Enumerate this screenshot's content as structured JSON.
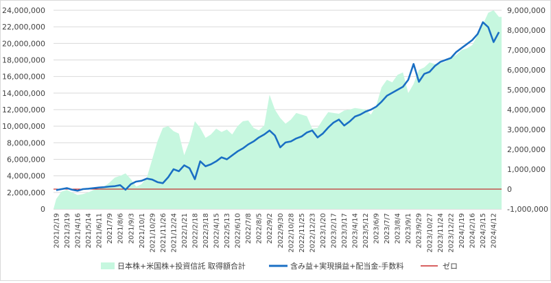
{
  "chart_data": {
    "type": "combo",
    "subtypes": [
      "area",
      "line",
      "line"
    ],
    "x": [
      "2021/2/19",
      "2021/3/5",
      "2021/3/19",
      "2021/4/2",
      "2021/4/16",
      "2021/4/30",
      "2021/5/14",
      "2021/5/28",
      "2021/6/11",
      "2021/6/25",
      "2021/7/9",
      "2021/7/23",
      "2021/8/6",
      "2021/8/20",
      "2021/9/3",
      "2021/9/17",
      "2021/10/1",
      "2021/10/15",
      "2021/10/29",
      "2021/11/12",
      "2021/11/26",
      "2021/12/10",
      "2021/12/24",
      "2022/1/7",
      "2022/1/21",
      "2022/2/4",
      "2022/2/18",
      "2022/3/4",
      "2022/3/18",
      "2022/4/1",
      "2022/4/15",
      "2022/4/29",
      "2022/5/13",
      "2022/5/27",
      "2022/6/10",
      "2022/6/24",
      "2022/7/8",
      "2022/7/22",
      "2022/8/5",
      "2022/8/19",
      "2022/9/2",
      "2022/9/16",
      "2022/9/30",
      "2022/10/14",
      "2022/10/28",
      "2022/11/11",
      "2022/11/25",
      "2022/12/9",
      "2022/12/23",
      "2023/1/6",
      "2023/1/20",
      "2023/2/3",
      "2023/2/17",
      "2023/3/3",
      "2023/3/17",
      "2023/3/31",
      "2023/4/14",
      "2023/4/28",
      "2023/5/12",
      "2023/5/26",
      "2023/6/9",
      "2023/6/23",
      "2023/7/7",
      "2023/7/21",
      "2023/8/4",
      "2023/8/18",
      "2023/9/1",
      "2023/9/15",
      "2023/9/29",
      "2023/10/13",
      "2023/10/27",
      "2023/11/10",
      "2023/11/24",
      "2023/12/8",
      "2023/12/22",
      "2024/1/5",
      "2024/1/19",
      "2024/2/2",
      "2024/2/16",
      "2024/3/1",
      "2024/3/15",
      "2024/3/29",
      "2024/4/12",
      "2024/4/26"
    ],
    "x_tick_labels": [
      "2021/2/19",
      "2021/3/19",
      "2021/4/16",
      "2021/5/14",
      "2021/6/11",
      "2021/7/9",
      "2021/8/6",
      "2021/9/3",
      "2021/10/1",
      "2021/10/29",
      "2021/11/26",
      "2021/12/24",
      "2022/1/21",
      "2022/2/18",
      "2022/3/18",
      "2022/4/15",
      "2022/5/13",
      "2022/6/10",
      "2022/7/8",
      "2022/8/5",
      "2022/9/2",
      "2022/9/30",
      "2022/10/28",
      "2022/11/25",
      "2022/12/23",
      "2023/1/20",
      "2023/2/17",
      "2023/3/17",
      "2023/4/14",
      "2023/5/12",
      "2023/6/9",
      "2023/7/7",
      "2023/8/4",
      "2023/9/1",
      "2023/9/29",
      "2023/10/27",
      "2023/11/24",
      "2023/12/22",
      "2024/1/19",
      "2024/2/16",
      "2024/3/15",
      "2024/4/12"
    ],
    "y_left": {
      "min": 0,
      "max": 24000000,
      "step": 2000000,
      "tick_labels": [
        "0",
        "2,000,000",
        "4,000,000",
        "6,000,000",
        "8,000,000",
        "10,000,000",
        "12,000,000",
        "14,000,000",
        "16,000,000",
        "18,000,000",
        "20,000,000",
        "22,000,000",
        "24,000,000"
      ]
    },
    "y_right": {
      "min": -1000000,
      "max": 9000000,
      "step": 1000000,
      "tick_labels": [
        "-1,000,000",
        "0",
        "1,000,000",
        "2,000,000",
        "3,000,000",
        "4,000,000",
        "5,000,000",
        "6,000,000",
        "7,000,000",
        "8,000,000",
        "9,000,000"
      ]
    },
    "series": [
      {
        "name": "日本株+米国株+投資信託 取得額合計",
        "type": "area",
        "axis": "left",
        "color": "#c6f7df",
        "values": [
          1200000,
          2100000,
          2300000,
          2000000,
          1700000,
          1800000,
          2000000,
          2300000,
          2400000,
          2700000,
          3200000,
          3800000,
          4000000,
          4300000,
          3600000,
          2700000,
          3000000,
          3800000,
          6000000,
          8200000,
          9800000,
          10000000,
          9400000,
          9100000,
          6500000,
          8200000,
          10600000,
          9800000,
          8600000,
          9000000,
          9700000,
          9300000,
          9600000,
          9000000,
          10000000,
          10600000,
          10700000,
          9800000,
          9500000,
          10100000,
          13800000,
          12000000,
          11000000,
          10300000,
          10800000,
          11600000,
          11400000,
          11200000,
          9700000,
          9800000,
          10800000,
          11700000,
          11600000,
          11500000,
          11900000,
          12000000,
          12200000,
          12100000,
          12000000,
          11400000,
          12500000,
          14700000,
          15600000,
          15300000,
          16200000,
          16500000,
          14000000,
          15100000,
          16800000,
          17100000,
          17700000,
          17500000,
          17600000,
          17800000,
          18300000,
          18600000,
          19200000,
          19400000,
          19800000,
          21000000,
          22300000,
          23700000,
          24000000,
          23200000
        ]
      },
      {
        "name": "含み益+実現損益+配当金-手数料",
        "type": "line",
        "axis": "right",
        "color": "#1a6fc4",
        "values": [
          -50000,
          0,
          50000,
          -30000,
          -80000,
          0,
          20000,
          50000,
          80000,
          100000,
          130000,
          150000,
          200000,
          -30000,
          250000,
          380000,
          420000,
          530000,
          480000,
          350000,
          300000,
          600000,
          1000000,
          900000,
          1200000,
          1050000,
          500000,
          1400000,
          1150000,
          1250000,
          1400000,
          1600000,
          1500000,
          1700000,
          1900000,
          2050000,
          2250000,
          2400000,
          2600000,
          2750000,
          2950000,
          2700000,
          2100000,
          2350000,
          2400000,
          2550000,
          2650000,
          2850000,
          2950000,
          2600000,
          2800000,
          3100000,
          3350000,
          3500000,
          3200000,
          3400000,
          3650000,
          3750000,
          3900000,
          4000000,
          4150000,
          4400000,
          4700000,
          4850000,
          5000000,
          5150000,
          5500000,
          6300000,
          5400000,
          5800000,
          5900000,
          6200000,
          6400000,
          6500000,
          6600000,
          6900000,
          7100000,
          7300000,
          7500000,
          7800000,
          8400000,
          8150000,
          7400000,
          7900000
        ]
      },
      {
        "name": "ゼロ",
        "type": "line",
        "axis": "right",
        "color": "#c00000",
        "values": "constant 0"
      }
    ],
    "legend_position": "bottom",
    "grid": "horizontal"
  }
}
